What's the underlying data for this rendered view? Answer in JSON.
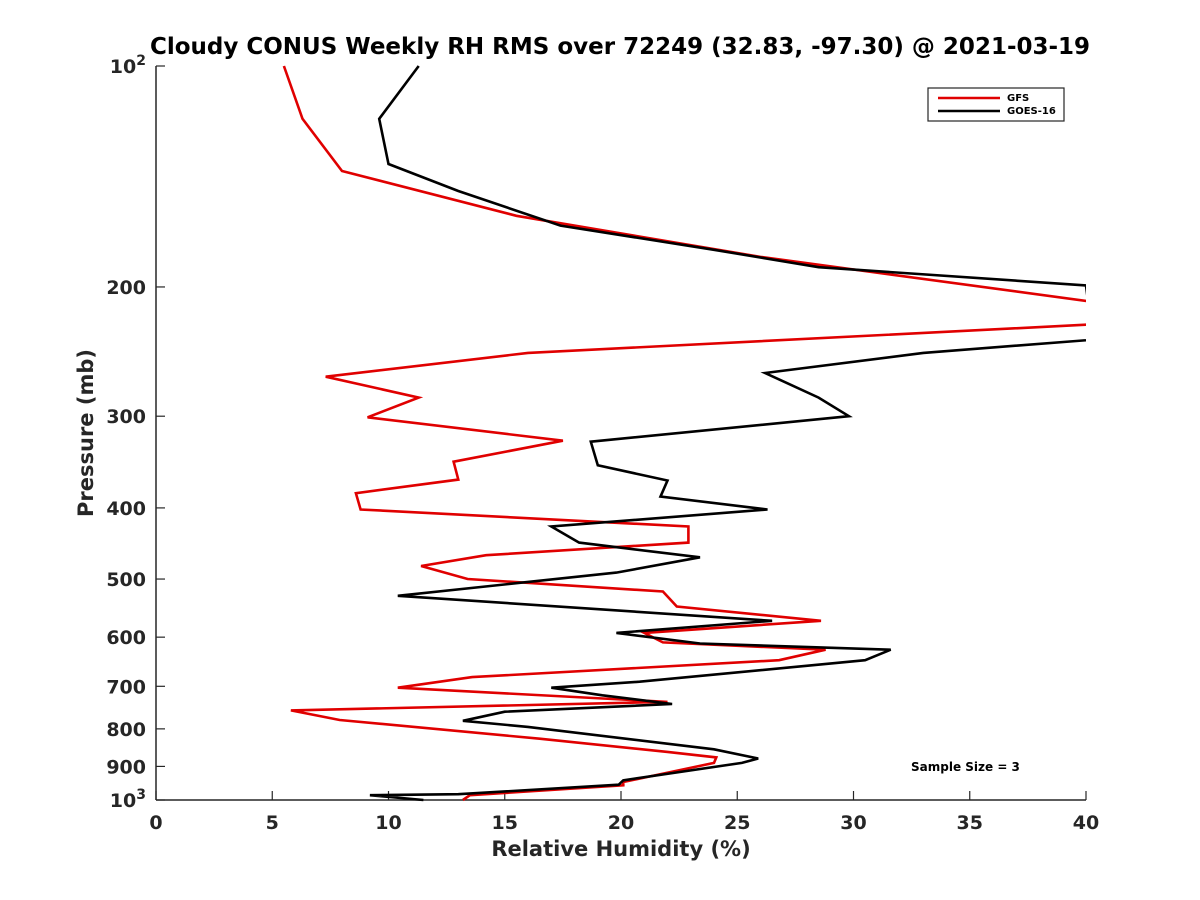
{
  "chart_data": {
    "type": "line",
    "title": "Cloudy CONUS Weekly RH RMS over 72249 (32.83, -97.30) @ 2021-03-19",
    "xlabel": "Relative Humidity (%)",
    "ylabel": "Pressure (mb)",
    "xlim": [
      0,
      40
    ],
    "ylim": [
      100,
      1000
    ],
    "y_scale": "log",
    "y_reversed": true,
    "x_ticks": [
      "0",
      "5",
      "10",
      "15",
      "20",
      "25",
      "30",
      "35",
      "40"
    ],
    "y_ticks": [
      {
        "value": 100,
        "label": "10",
        "sup": "2"
      },
      {
        "value": 200,
        "label": "200",
        "sup": ""
      },
      {
        "value": 300,
        "label": "300",
        "sup": ""
      },
      {
        "value": 400,
        "label": "400",
        "sup": ""
      },
      {
        "value": 500,
        "label": "500",
        "sup": ""
      },
      {
        "value": 600,
        "label": "600",
        "sup": ""
      },
      {
        "value": 700,
        "label": "700",
        "sup": ""
      },
      {
        "value": 800,
        "label": "800",
        "sup": ""
      },
      {
        "value": 900,
        "label": "900",
        "sup": ""
      },
      {
        "value": 1000,
        "label": "10",
        "sup": "3"
      }
    ],
    "legend_position": "top-right",
    "annotation": "Sample Size = 3",
    "series": [
      {
        "name": "GFS",
        "color": "#e00000",
        "points": [
          {
            "x": 5.5,
            "y": 100
          },
          {
            "x": 6.3,
            "y": 118
          },
          {
            "x": 8.0,
            "y": 139
          },
          {
            "x": 15.5,
            "y": 160
          },
          {
            "x": 26.0,
            "y": 182
          },
          {
            "x": 40.5,
            "y": 210
          },
          {
            "x": 40.2,
            "y": 225
          },
          {
            "x": 16.0,
            "y": 246
          },
          {
            "x": 7.3,
            "y": 265
          },
          {
            "x": 11.3,
            "y": 283
          },
          {
            "x": 9.1,
            "y": 301
          },
          {
            "x": 17.5,
            "y": 324
          },
          {
            "x": 12.8,
            "y": 346
          },
          {
            "x": 13.0,
            "y": 366
          },
          {
            "x": 8.6,
            "y": 382
          },
          {
            "x": 8.8,
            "y": 402
          },
          {
            "x": 22.9,
            "y": 424
          },
          {
            "x": 22.9,
            "y": 446
          },
          {
            "x": 14.2,
            "y": 464
          },
          {
            "x": 11.4,
            "y": 480
          },
          {
            "x": 13.4,
            "y": 500
          },
          {
            "x": 21.8,
            "y": 520
          },
          {
            "x": 22.4,
            "y": 545
          },
          {
            "x": 28.6,
            "y": 570
          },
          {
            "x": 21.0,
            "y": 592
          },
          {
            "x": 21.8,
            "y": 610
          },
          {
            "x": 28.8,
            "y": 624
          },
          {
            "x": 26.8,
            "y": 645
          },
          {
            "x": 13.6,
            "y": 680
          },
          {
            "x": 10.4,
            "y": 703
          },
          {
            "x": 22.0,
            "y": 735
          },
          {
            "x": 5.8,
            "y": 755
          },
          {
            "x": 7.9,
            "y": 778
          },
          {
            "x": 16.5,
            "y": 825
          },
          {
            "x": 22.0,
            "y": 860
          },
          {
            "x": 24.1,
            "y": 875
          },
          {
            "x": 24.0,
            "y": 890
          },
          {
            "x": 20.1,
            "y": 945
          },
          {
            "x": 20.1,
            "y": 955
          },
          {
            "x": 13.5,
            "y": 985
          },
          {
            "x": 13.2,
            "y": 1000
          }
        ]
      },
      {
        "name": "GOES-16",
        "color": "#000000",
        "points": [
          {
            "x": 11.3,
            "y": 100
          },
          {
            "x": 9.6,
            "y": 118
          },
          {
            "x": 10.0,
            "y": 136
          },
          {
            "x": 13.0,
            "y": 148
          },
          {
            "x": 17.4,
            "y": 165
          },
          {
            "x": 24.0,
            "y": 178
          },
          {
            "x": 28.5,
            "y": 188
          },
          {
            "x": 40.0,
            "y": 199
          },
          {
            "x": 40.3,
            "y": 236
          },
          {
            "x": 33.0,
            "y": 246
          },
          {
            "x": 26.2,
            "y": 262
          },
          {
            "x": 28.5,
            "y": 283
          },
          {
            "x": 29.8,
            "y": 300
          },
          {
            "x": 18.7,
            "y": 325
          },
          {
            "x": 19.0,
            "y": 350
          },
          {
            "x": 22.0,
            "y": 367
          },
          {
            "x": 21.7,
            "y": 386
          },
          {
            "x": 26.3,
            "y": 402
          },
          {
            "x": 17.0,
            "y": 424
          },
          {
            "x": 18.2,
            "y": 446
          },
          {
            "x": 23.4,
            "y": 467
          },
          {
            "x": 19.8,
            "y": 490
          },
          {
            "x": 10.4,
            "y": 527
          },
          {
            "x": 26.5,
            "y": 570
          },
          {
            "x": 19.8,
            "y": 592
          },
          {
            "x": 23.4,
            "y": 612
          },
          {
            "x": 31.6,
            "y": 624
          },
          {
            "x": 30.5,
            "y": 645
          },
          {
            "x": 20.8,
            "y": 690
          },
          {
            "x": 17.0,
            "y": 703
          },
          {
            "x": 19.2,
            "y": 720
          },
          {
            "x": 22.2,
            "y": 740
          },
          {
            "x": 15.0,
            "y": 758
          },
          {
            "x": 13.2,
            "y": 780
          },
          {
            "x": 16.0,
            "y": 795
          },
          {
            "x": 24.0,
            "y": 853
          },
          {
            "x": 25.9,
            "y": 878
          },
          {
            "x": 25.2,
            "y": 890
          },
          {
            "x": 20.1,
            "y": 940
          },
          {
            "x": 19.9,
            "y": 953
          },
          {
            "x": 13.0,
            "y": 982
          },
          {
            "x": 9.2,
            "y": 985
          },
          {
            "x": 11.5,
            "y": 1000
          }
        ]
      }
    ]
  }
}
